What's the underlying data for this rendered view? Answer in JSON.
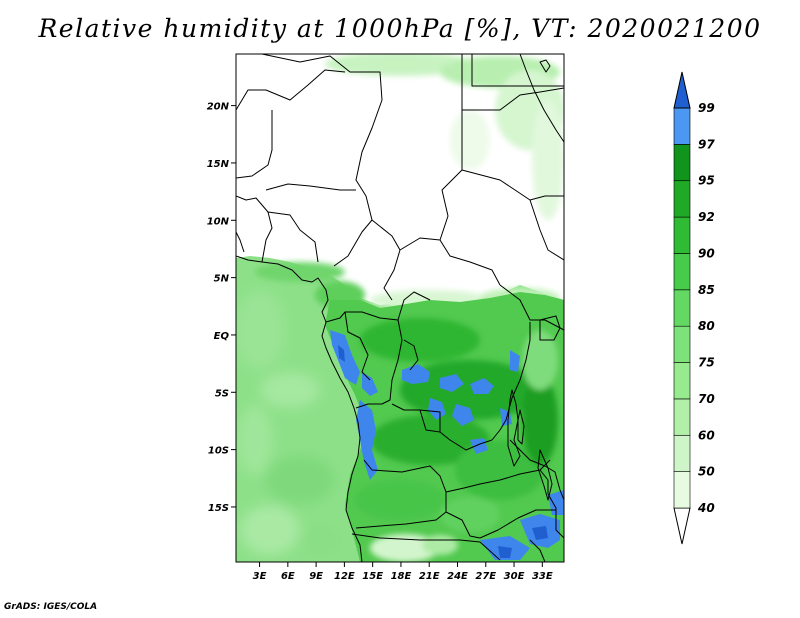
{
  "title": "Relative humidity at 1000hPa [%], VT: 2020021200",
  "credit": "GrADS: IGES/COLA",
  "map": {
    "lat_ticks": [
      "20N",
      "15N",
      "10N",
      "5N",
      "EQ",
      "5S",
      "10S",
      "15S"
    ],
    "lon_ticks": [
      "3E",
      "6E",
      "9E",
      "12E",
      "15E",
      "18E",
      "21E",
      "24E",
      "27E",
      "30E",
      "33E"
    ],
    "lat_range": [
      -19.8,
      24.5
    ],
    "lon_range": [
      0.5,
      35.3
    ]
  },
  "colorbar": {
    "levels": [
      "40",
      "50",
      "60",
      "70",
      "75",
      "80",
      "85",
      "90",
      "92",
      "95",
      "97",
      "99"
    ],
    "colors": [
      "#ffffff",
      "#e6fbe0",
      "#cdf5c8",
      "#b2efa9",
      "#98ea8f",
      "#7ee27b",
      "#63d963",
      "#47cb4a",
      "#2fbb34",
      "#1fa927",
      "#11941c",
      "#4a98f2",
      "#2f7be2",
      "#1f5fd0"
    ]
  },
  "colors": {
    "ocean": "#8fe38a",
    "no_data_land": "#ffffff",
    "border": "#000000"
  }
}
